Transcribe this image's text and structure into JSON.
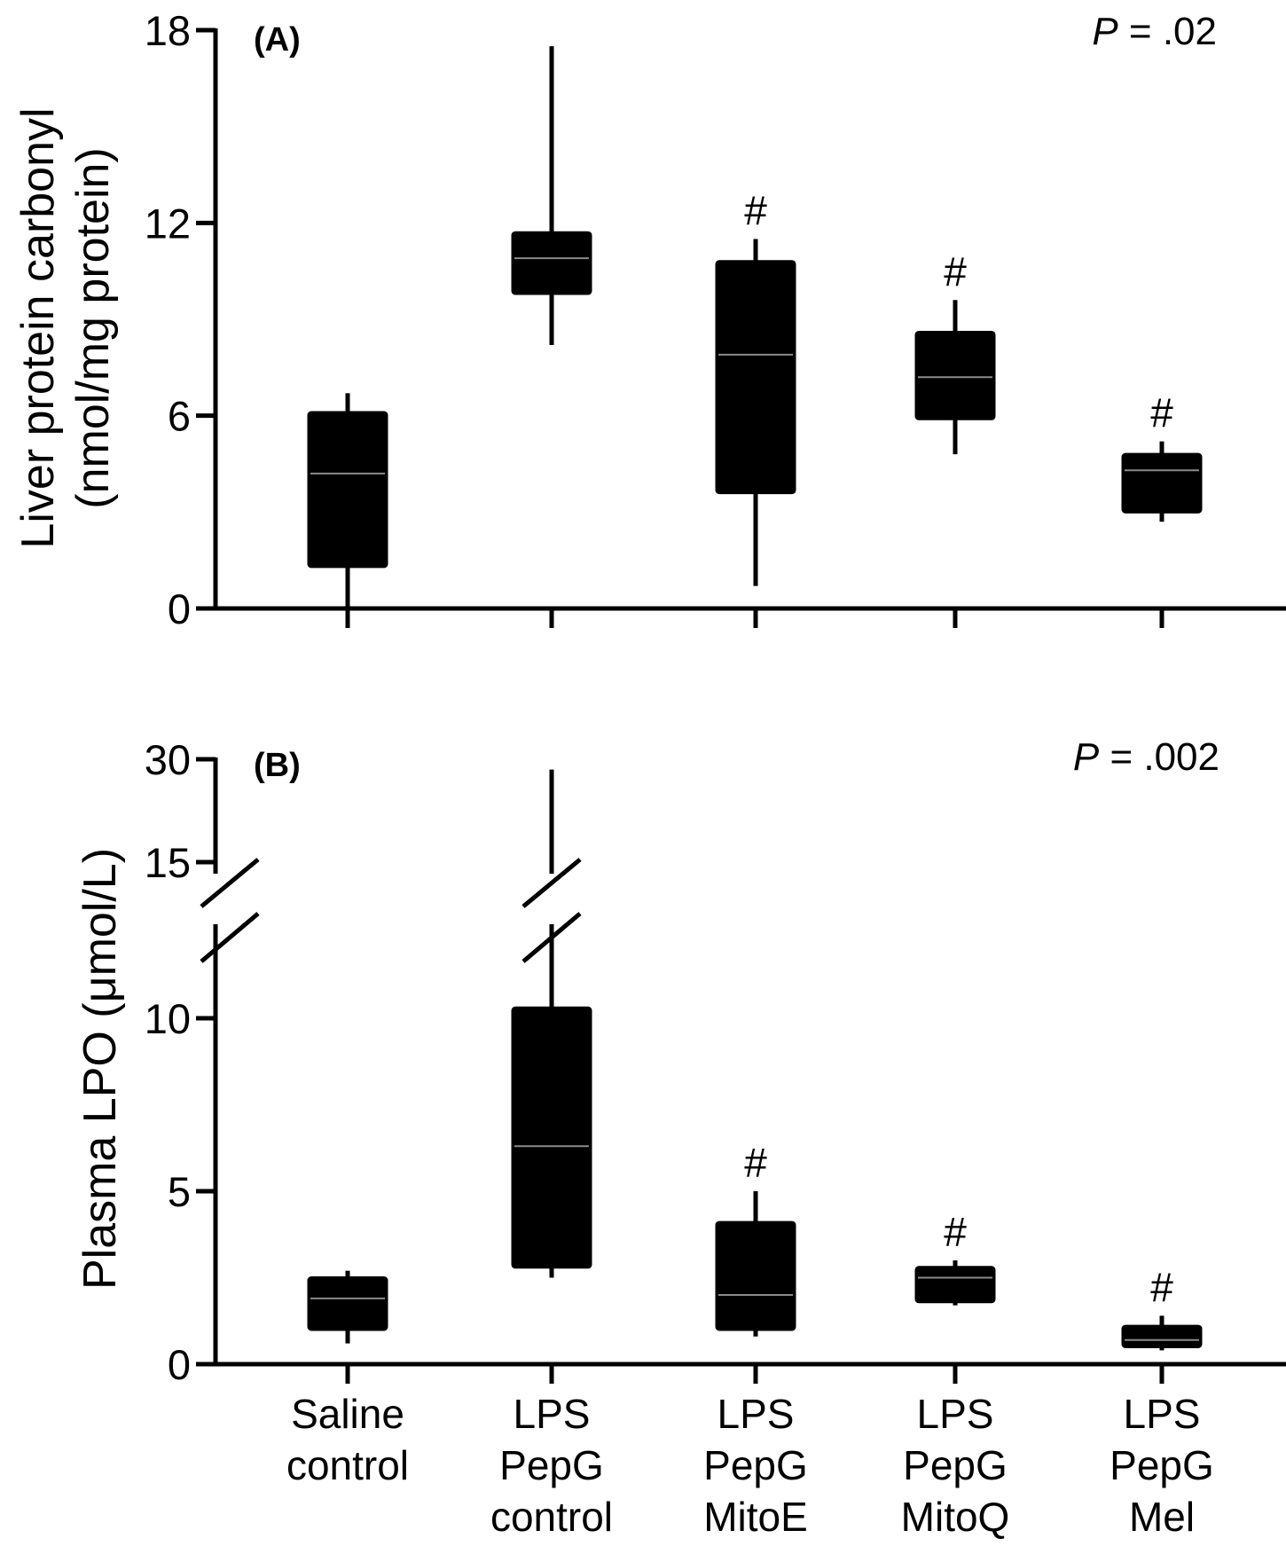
{
  "categories": [
    [
      "Saline",
      "control"
    ],
    [
      "LPS",
      "PepG",
      "control"
    ],
    [
      "LPS",
      "PepG",
      "MitoE"
    ],
    [
      "LPS",
      "PepG",
      "MitoQ"
    ],
    [
      "LPS",
      "PepG",
      "Mel"
    ]
  ],
  "chart_data": [
    {
      "type": "box",
      "panel_label": "(A)",
      "p_symbol": "P",
      "p_value": " = .02",
      "ylabel_line1": "Liver protein carbonyl",
      "ylabel_line2": "(nmol/mg protein)",
      "yticks": [
        "0",
        "6",
        "12",
        "18"
      ],
      "ylim": [
        0,
        18
      ],
      "y_axis_break": null,
      "categories": [
        "Saline control",
        "LPS PepG control",
        "LPS PepG MitoE",
        "LPS PepG MitoQ",
        "LPS PepG Mel"
      ],
      "boxes": [
        {
          "min": 0.0,
          "q1": 1.3,
          "median": 4.2,
          "q3": 6.1,
          "max": 6.7,
          "sig": ""
        },
        {
          "min": 8.2,
          "q1": 9.8,
          "median": 10.9,
          "q3": 11.7,
          "max": 17.5,
          "sig": ""
        },
        {
          "min": 0.7,
          "q1": 3.6,
          "median": 7.9,
          "q3": 10.8,
          "max": 11.5,
          "sig": "#"
        },
        {
          "min": 4.8,
          "q1": 5.9,
          "median": 7.2,
          "q3": 8.6,
          "max": 9.6,
          "sig": "#"
        },
        {
          "min": 2.7,
          "q1": 3.0,
          "median": 4.3,
          "q3": 4.8,
          "max": 5.2,
          "sig": "#"
        }
      ],
      "grid": false,
      "legend": "none"
    },
    {
      "type": "box",
      "panel_label": "(B)",
      "p_symbol": "P",
      "p_value": " = .002",
      "ylabel": "Plasma LPO (μmol/L)",
      "yticks": [
        "0",
        "5",
        "10",
        "15",
        "30"
      ],
      "ylim": [
        0,
        30
      ],
      "y_axis_break": [
        12,
        15
      ],
      "categories": [
        "Saline control",
        "LPS PepG control",
        "LPS PepG MitoE",
        "LPS PepG MitoQ",
        "LPS PepG Mel"
      ],
      "boxes": [
        {
          "min": 0.6,
          "q1": 1.0,
          "median": 1.9,
          "q3": 2.5,
          "max": 2.7,
          "sig": ""
        },
        {
          "min": 2.5,
          "q1": 2.8,
          "median": 6.3,
          "q3": 10.3,
          "max": 28.5,
          "sig": ""
        },
        {
          "min": 0.8,
          "q1": 1.0,
          "median": 2.0,
          "q3": 4.1,
          "max": 5.0,
          "sig": "#"
        },
        {
          "min": 1.7,
          "q1": 1.8,
          "median": 2.5,
          "q3": 2.8,
          "max": 3.0,
          "sig": "#"
        },
        {
          "min": 0.4,
          "q1": 0.5,
          "median": 0.7,
          "q3": 1.1,
          "max": 1.4,
          "sig": "#"
        }
      ],
      "grid": false,
      "legend": "none"
    }
  ]
}
